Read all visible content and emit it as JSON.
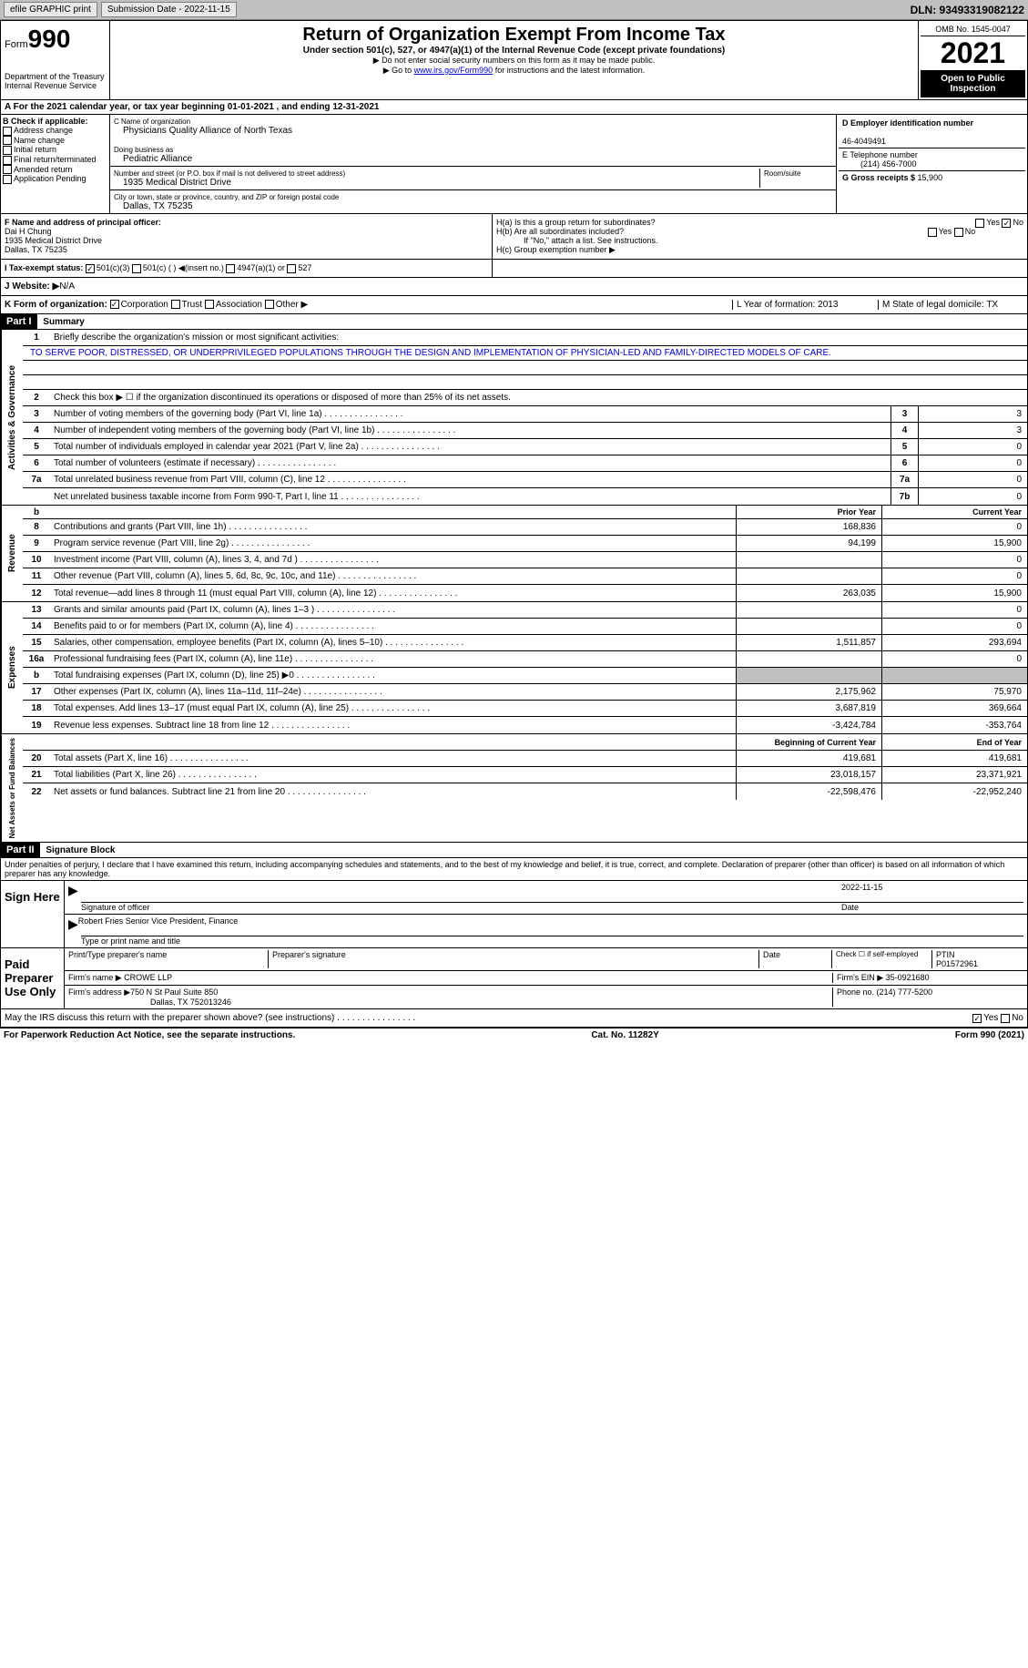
{
  "topbar": {
    "efile": "efile GRAPHIC print",
    "submission": "Submission Date - 2022-11-15",
    "dln": "DLN: 93493319082122"
  },
  "header": {
    "form_label": "Form",
    "form_num": "990",
    "title": "Return of Organization Exempt From Income Tax",
    "subtitle": "Under section 501(c), 527, or 4947(a)(1) of the Internal Revenue Code (except private foundations)",
    "instruct1": "▶ Do not enter social security numbers on this form as it may be made public.",
    "instruct2_pre": "▶ Go to ",
    "instruct2_link": "www.irs.gov/Form990",
    "instruct2_post": " for instructions and the latest information.",
    "dept": "Department of the Treasury",
    "irs": "Internal Revenue Service",
    "omb": "OMB No. 1545-0047",
    "year": "2021",
    "open": "Open to Public Inspection"
  },
  "row_a": "A For the 2021 calendar year, or tax year beginning 01-01-2021   , and ending 12-31-2021",
  "box_b": {
    "label": "B Check if applicable:",
    "opts": [
      "Address change",
      "Name change",
      "Initial return",
      "Final return/terminated",
      "Amended return",
      "Application Pending"
    ]
  },
  "box_c": {
    "name_label": "C Name of organization",
    "name": "Physicians Quality Alliance of North Texas",
    "dba_label": "Doing business as",
    "dba": "Pediatric Alliance",
    "addr_label": "Number and street (or P.O. box if mail is not delivered to street address)",
    "addr": "1935 Medical District Drive",
    "room_label": "Room/suite",
    "city_label": "City or town, state or province, country, and ZIP or foreign postal code",
    "city": "Dallas, TX  75235"
  },
  "box_d": {
    "label": "D Employer identification number",
    "val": "46-4049491"
  },
  "box_e": {
    "label": "E Telephone number",
    "val": "(214) 456-7000"
  },
  "box_g": {
    "label": "G Gross receipts $ ",
    "val": "15,900"
  },
  "box_f": {
    "label": "F  Name and address of principal officer:",
    "name": "Dai H Chung",
    "addr1": "1935 Medical District Drive",
    "addr2": "Dallas, TX  75235"
  },
  "box_h": {
    "ha": "H(a)  Is this a group return for subordinates?",
    "hb": "H(b)  Are all subordinates included?",
    "hb_note": "If \"No,\" attach a list. See instructions.",
    "hc": "H(c)  Group exemption number ▶"
  },
  "tax_exempt": {
    "label": "I   Tax-exempt status:",
    "opt1": "501(c)(3)",
    "opt2": "501(c) (  ) ◀(insert no.)",
    "opt3": "4947(a)(1) or",
    "opt4": "527"
  },
  "row_j": {
    "label": "J  Website: ▶",
    "val": "  N/A"
  },
  "row_k": {
    "label": "K Form of organization:",
    "opts": [
      "Corporation",
      "Trust",
      "Association",
      "Other ▶"
    ],
    "l": "L Year of formation: 2013",
    "m": "M State of legal domicile: TX"
  },
  "part1": {
    "header": "Part I",
    "title": "Summary",
    "line1_label": "Briefly describe the organization's mission or most significant activities:",
    "mission": "TO SERVE POOR, DISTRESSED, OR UNDERPRIVILEGED POPULATIONS THROUGH THE DESIGN AND IMPLEMENTATION OF PHYSICIAN-LED AND FAMILY-DIRECTED MODELS OF CARE.",
    "line2": "Check this box ▶ ☐  if the organization discontinued its operations or disposed of more than 25% of its net assets.",
    "lines_ag": [
      {
        "n": "3",
        "t": "Number of voting members of the governing body (Part VI, line 1a)",
        "box": "3",
        "v": "3"
      },
      {
        "n": "4",
        "t": "Number of independent voting members of the governing body (Part VI, line 1b)",
        "box": "4",
        "v": "3"
      },
      {
        "n": "5",
        "t": "Total number of individuals employed in calendar year 2021 (Part V, line 2a)",
        "box": "5",
        "v": "0"
      },
      {
        "n": "6",
        "t": "Total number of volunteers (estimate if necessary)",
        "box": "6",
        "v": "0"
      },
      {
        "n": "7a",
        "t": "Total unrelated business revenue from Part VIII, column (C), line 12",
        "box": "7a",
        "v": "0"
      },
      {
        "n": "",
        "t": "Net unrelated business taxable income from Form 990-T, Part I, line 11",
        "box": "7b",
        "v": "0"
      }
    ],
    "col_prior": "Prior Year",
    "col_current": "Current Year",
    "revenue": [
      {
        "n": "8",
        "t": "Contributions and grants (Part VIII, line 1h)",
        "p": "168,836",
        "c": "0"
      },
      {
        "n": "9",
        "t": "Program service revenue (Part VIII, line 2g)",
        "p": "94,199",
        "c": "15,900"
      },
      {
        "n": "10",
        "t": "Investment income (Part VIII, column (A), lines 3, 4, and 7d )",
        "p": "",
        "c": "0"
      },
      {
        "n": "11",
        "t": "Other revenue (Part VIII, column (A), lines 5, 6d, 8c, 9c, 10c, and 11e)",
        "p": "",
        "c": "0"
      },
      {
        "n": "12",
        "t": "Total revenue—add lines 8 through 11 (must equal Part VIII, column (A), line 12)",
        "p": "263,035",
        "c": "15,900"
      }
    ],
    "expenses": [
      {
        "n": "13",
        "t": "Grants and similar amounts paid (Part IX, column (A), lines 1–3 )",
        "p": "",
        "c": "0"
      },
      {
        "n": "14",
        "t": "Benefits paid to or for members (Part IX, column (A), line 4)",
        "p": "",
        "c": "0"
      },
      {
        "n": "15",
        "t": "Salaries, other compensation, employee benefits (Part IX, column (A), lines 5–10)",
        "p": "1,511,857",
        "c": "293,694"
      },
      {
        "n": "16a",
        "t": "Professional fundraising fees (Part IX, column (A), line 11e)",
        "p": "",
        "c": "0"
      },
      {
        "n": "b",
        "t": "Total fundraising expenses (Part IX, column (D), line 25) ▶0",
        "p": "GREY",
        "c": "GREY"
      },
      {
        "n": "17",
        "t": "Other expenses (Part IX, column (A), lines 11a–11d, 11f–24e)",
        "p": "2,175,962",
        "c": "75,970"
      },
      {
        "n": "18",
        "t": "Total expenses. Add lines 13–17 (must equal Part IX, column (A), line 25)",
        "p": "3,687,819",
        "c": "369,664"
      },
      {
        "n": "19",
        "t": "Revenue less expenses. Subtract line 18 from line 12",
        "p": "-3,424,784",
        "c": "-353,764"
      }
    ],
    "col_begin": "Beginning of Current Year",
    "col_end": "End of Year",
    "netassets": [
      {
        "n": "20",
        "t": "Total assets (Part X, line 16)",
        "p": "419,681",
        "c": "419,681"
      },
      {
        "n": "21",
        "t": "Total liabilities (Part X, line 26)",
        "p": "23,018,157",
        "c": "23,371,921"
      },
      {
        "n": "22",
        "t": "Net assets or fund balances. Subtract line 21 from line 20",
        "p": "-22,598,476",
        "c": "-22,952,240"
      }
    ],
    "vert_ag": "Activities & Governance",
    "vert_rev": "Revenue",
    "vert_exp": "Expenses",
    "vert_na": "Net Assets or Fund Balances"
  },
  "part2": {
    "header": "Part II",
    "title": "Signature Block",
    "penalty": "Under penalties of perjury, I declare that I have examined this return, including accompanying schedules and statements, and to the best of my knowledge and belief, it is true, correct, and complete. Declaration of preparer (other than officer) is based on all information of which preparer has any knowledge.",
    "sign_here": "Sign Here",
    "sig_date": "2022-11-15",
    "sig_officer": "Signature of officer",
    "date_label": "Date",
    "officer_name": "Robert Fries  Senior Vice President, Finance",
    "type_print": "Type or print name and title",
    "paid_prep": "Paid Preparer Use Only",
    "prep_name_label": "Print/Type preparer's name",
    "prep_sig_label": "Preparer's signature",
    "check_self": "Check ☐ if self-employed",
    "ptin_label": "PTIN",
    "ptin": "P01572961",
    "firm_name_label": "Firm's name    ▶",
    "firm_name": " CROWE LLP",
    "firm_ein_label": "Firm's EIN ▶ ",
    "firm_ein": "35-0921680",
    "firm_addr_label": "Firm's address ▶",
    "firm_addr": "750 N St Paul Suite 850",
    "firm_city": "Dallas, TX  752013246",
    "phone_label": "Phone no. ",
    "phone": "(214) 777-5200",
    "may_irs": "May the IRS discuss this return with the preparer shown above? (see instructions)"
  },
  "footer": {
    "pra": "For Paperwork Reduction Act Notice, see the separate instructions.",
    "cat": "Cat. No. 11282Y",
    "form": "Form 990 (2021)"
  },
  "yes": "Yes",
  "no": "No"
}
